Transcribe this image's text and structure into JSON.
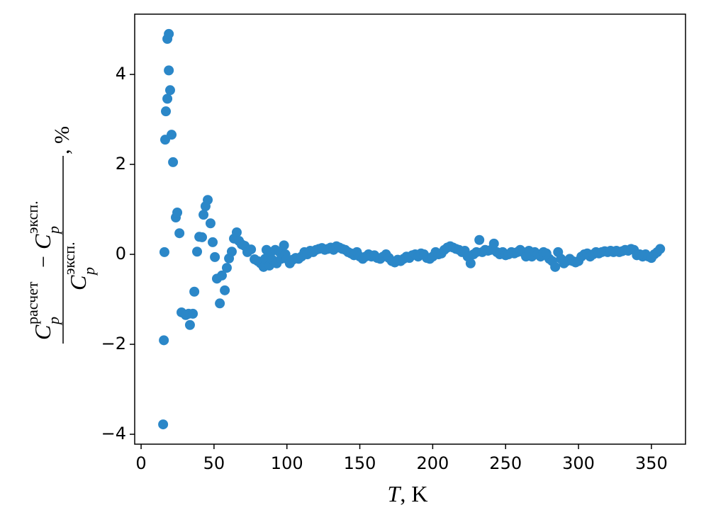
{
  "chart_data": {
    "type": "scatter",
    "xlabel": {
      "symbol": "T",
      "unit": ", K"
    },
    "ylabel": {
      "symbol": "C",
      "subscript": "p",
      "sup_calc": "расчет",
      "sup_exp": "эксп.",
      "minus": "−",
      "unit": ", %"
    },
    "color": "#2b87c8",
    "xlim": [
      -4.4,
      373.4
    ],
    "ylim": [
      -4.22,
      5.34
    ],
    "xticks": [
      0,
      50,
      100,
      150,
      200,
      250,
      300,
      350
    ],
    "yticks": [
      {
        "value": -4,
        "label": "−4"
      },
      {
        "value": -2,
        "label": "−2"
      },
      0,
      2,
      4
    ],
    "x": [
      15.1,
      15.6,
      16.0,
      16.5,
      17.0,
      18.0,
      18.0,
      19.0,
      19.0,
      19.9,
      20.9,
      21.9,
      23.8,
      24.8,
      26.3,
      27.7,
      30.6,
      32.6,
      33.5,
      35.5,
      36.5,
      38.4,
      39.9,
      41.8,
      42.8,
      44.2,
      45.7,
      47.6,
      49.1,
      50.6,
      52.0,
      54.0,
      55.4,
      57.4,
      58.8,
      60.3,
      62.2,
      63.7,
      65.6,
      67.1,
      69.0,
      71.0,
      72.9,
      75.4,
      77.8,
      80,
      82,
      84,
      85,
      86,
      88,
      89,
      90,
      92,
      93,
      95,
      96,
      98,
      99,
      100,
      102,
      104,
      106,
      108,
      110,
      112,
      114,
      116,
      118,
      120,
      122,
      124,
      126,
      128,
      130,
      132,
      134,
      136,
      138,
      140,
      142,
      144,
      146,
      148,
      150,
      152,
      154,
      156,
      158,
      160,
      162,
      164,
      166,
      168,
      170,
      172,
      174,
      176,
      178,
      180,
      182,
      184,
      186,
      188,
      190,
      192,
      194,
      196,
      198,
      200,
      202,
      204,
      206,
      208,
      210,
      212,
      214,
      216,
      218,
      220,
      222,
      224,
      226,
      228,
      230,
      232,
      234,
      236,
      238,
      240,
      242,
      244,
      246,
      248,
      250,
      252,
      254,
      256,
      258,
      260,
      262,
      264,
      266,
      268,
      270,
      272,
      274,
      276,
      278,
      280,
      282,
      284,
      286,
      288,
      290,
      292,
      294,
      296,
      298,
      300,
      302,
      304,
      306,
      308,
      310,
      312,
      314,
      316,
      318,
      320,
      322,
      324,
      326,
      328,
      330,
      332,
      334,
      336,
      338,
      340,
      342,
      344,
      346,
      348,
      350,
      352,
      354,
      356
    ],
    "values": [
      -3.78,
      -1.91,
      0.05,
      2.55,
      3.18,
      3.46,
      4.79,
      4.9,
      4.09,
      3.65,
      2.66,
      2.05,
      0.82,
      0.93,
      0.47,
      -1.29,
      -1.35,
      -1.32,
      -1.57,
      -1.32,
      -0.83,
      0.06,
      0.39,
      0.38,
      0.88,
      1.07,
      1.21,
      0.69,
      0.27,
      -0.06,
      -0.54,
      -1.09,
      -0.47,
      -0.8,
      -0.3,
      -0.09,
      0.06,
      0.35,
      0.49,
      0.3,
      0.22,
      0.19,
      0.05,
      0.11,
      -0.11,
      -0.15,
      -0.2,
      -0.28,
      -0.1,
      0.1,
      -0.25,
      0.05,
      -0.12,
      0.1,
      -0.2,
      0.05,
      -0.1,
      0.2,
      0.0,
      -0.1,
      -0.2,
      -0.12,
      -0.08,
      -0.1,
      -0.05,
      0.05,
      0.0,
      0.08,
      0.05,
      0.1,
      0.12,
      0.14,
      0.1,
      0.12,
      0.15,
      0.1,
      0.18,
      0.15,
      0.12,
      0.1,
      0.05,
      0.02,
      -0.02,
      0.05,
      -0.05,
      -0.1,
      -0.05,
      0.0,
      -0.05,
      -0.02,
      -0.08,
      -0.1,
      -0.05,
      0.0,
      -0.08,
      -0.15,
      -0.18,
      -0.12,
      -0.15,
      -0.1,
      -0.05,
      -0.08,
      -0.02,
      0.0,
      -0.05,
      0.02,
      0.0,
      -0.08,
      -0.1,
      -0.05,
      0.05,
      0.0,
      0.02,
      0.1,
      0.15,
      0.18,
      0.15,
      0.12,
      0.1,
      0.05,
      0.08,
      -0.05,
      -0.2,
      0.0,
      0.05,
      0.32,
      0.05,
      0.1,
      0.08,
      0.1,
      0.24,
      0.05,
      0.0,
      0.05,
      -0.02,
      0.0,
      0.05,
      0.02,
      0.05,
      0.1,
      0.05,
      -0.05,
      0.08,
      -0.05,
      0.05,
      0.0,
      -0.05,
      0.05,
      0.02,
      -0.1,
      -0.15,
      -0.28,
      0.05,
      -0.1,
      -0.2,
      -0.15,
      -0.1,
      -0.15,
      -0.18,
      -0.15,
      -0.05,
      0.0,
      0.02,
      -0.05,
      0.0,
      0.05,
      0.02,
      0.05,
      0.07,
      0.05,
      0.08,
      0.05,
      0.08,
      0.05,
      0.07,
      0.1,
      0.08,
      0.12,
      0.1,
      -0.02,
      0.0,
      -0.05,
      0.0,
      -0.05,
      -0.08,
      0.0,
      0.05,
      0.12
    ]
  }
}
